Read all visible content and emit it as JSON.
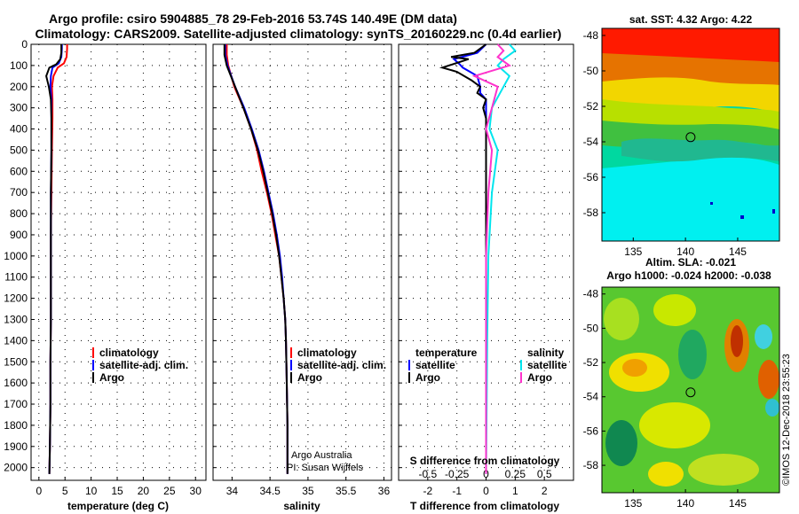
{
  "header": {
    "title_line1": "Argo profile: csiro 5904885_78 29-Feb-2016 53.74S 140.49E (DM data)",
    "title_line2": "Climatology: CARS2009. Satellite-adjusted climatology: synTS_20160229.nc (0.4d earlier)"
  },
  "colors": {
    "climatology": "#ff0000",
    "satellite": "#0000ff",
    "argo": "#000000",
    "sal_satellite": "#00e5ee",
    "sal_argo": "#ff33cc"
  },
  "credits": {
    "line1": "Argo Australia",
    "line2": "PI: Susan Wijffels",
    "imos": "©IMOS 12-Dec-2018 23:55:23"
  },
  "chart_data": [
    {
      "type": "line",
      "id": "temperature",
      "xlabel": "temperature (deg C)",
      "xlim": [
        -1.5,
        32
      ],
      "xticks": [
        0,
        5,
        10,
        15,
        20,
        25,
        30
      ],
      "ylim": [
        2060,
        0
      ],
      "yticks": [
        0,
        100,
        200,
        300,
        400,
        500,
        600,
        700,
        800,
        900,
        1000,
        1100,
        1200,
        1300,
        1400,
        1500,
        1600,
        1700,
        1800,
        1900,
        2000
      ],
      "legend": [
        "climatology",
        "satellite-adj. clim.",
        "Argo"
      ],
      "series": [
        {
          "name": "climatology",
          "points": [
            [
              5.4,
              0
            ],
            [
              5.4,
              20
            ],
            [
              5.3,
              60
            ],
            [
              4.8,
              90
            ],
            [
              3.6,
              110
            ],
            [
              2.8,
              150
            ],
            [
              2.5,
              200
            ],
            [
              2.6,
              260
            ],
            [
              2.6,
              350
            ],
            [
              2.5,
              500
            ],
            [
              2.4,
              700
            ],
            [
              2.3,
              900
            ],
            [
              2.3,
              1100
            ],
            [
              2.3,
              1300
            ],
            [
              2.2,
              1500
            ],
            [
              2.2,
              1700
            ],
            [
              2.1,
              1900
            ],
            [
              2.0,
              2030
            ]
          ]
        },
        {
          "name": "satellite-adj. clim.",
          "points": [
            [
              4.4,
              0
            ],
            [
              4.4,
              20
            ],
            [
              4.3,
              60
            ],
            [
              3.8,
              90
            ],
            [
              2.6,
              110
            ],
            [
              2.3,
              150
            ],
            [
              2.2,
              200
            ],
            [
              2.4,
              260
            ],
            [
              2.4,
              350
            ],
            [
              2.4,
              500
            ],
            [
              2.3,
              700
            ],
            [
              2.3,
              900
            ],
            [
              2.3,
              1100
            ],
            [
              2.3,
              1300
            ],
            [
              2.2,
              1500
            ],
            [
              2.2,
              1700
            ],
            [
              2.1,
              1900
            ],
            [
              2.0,
              2030
            ]
          ]
        },
        {
          "name": "Argo",
          "points": [
            [
              4.3,
              0
            ],
            [
              4.3,
              40
            ],
            [
              4.1,
              70
            ],
            [
              3.3,
              95
            ],
            [
              2.0,
              110
            ],
            [
              1.4,
              150
            ],
            [
              1.9,
              200
            ],
            [
              2.3,
              260
            ],
            [
              2.4,
              350
            ],
            [
              2.4,
              500
            ],
            [
              2.3,
              700
            ],
            [
              2.3,
              900
            ],
            [
              2.3,
              1100
            ],
            [
              2.3,
              1300
            ],
            [
              2.2,
              1500
            ],
            [
              2.2,
              1700
            ],
            [
              2.1,
              1900
            ],
            [
              2.0,
              2030
            ]
          ]
        }
      ]
    },
    {
      "type": "line",
      "id": "salinity",
      "xlabel": "salinity",
      "xlim": [
        33.75,
        36.1
      ],
      "xticks": [
        34,
        34.5,
        35,
        35.5,
        36
      ],
      "ylim": [
        2060,
        0
      ],
      "legend": [
        "climatology",
        "satellite-adj. clim.",
        "Argo"
      ],
      "series": [
        {
          "name": "climatology",
          "points": [
            [
              33.93,
              0
            ],
            [
              33.93,
              50
            ],
            [
              33.95,
              100
            ],
            [
              34.03,
              200
            ],
            [
              34.15,
              300
            ],
            [
              34.25,
              400
            ],
            [
              34.33,
              500
            ],
            [
              34.39,
              600
            ],
            [
              34.46,
              700
            ],
            [
              34.52,
              800
            ],
            [
              34.57,
              900
            ],
            [
              34.62,
              1000
            ],
            [
              34.65,
              1100
            ],
            [
              34.68,
              1200
            ],
            [
              34.7,
              1300
            ],
            [
              34.71,
              1400
            ],
            [
              34.72,
              1600
            ],
            [
              34.73,
              1800
            ],
            [
              34.73,
              2030
            ]
          ]
        },
        {
          "name": "satellite-adj. clim.",
          "points": [
            [
              33.91,
              0
            ],
            [
              33.91,
              50
            ],
            [
              33.94,
              100
            ],
            [
              34.04,
              200
            ],
            [
              34.16,
              300
            ],
            [
              34.26,
              400
            ],
            [
              34.35,
              500
            ],
            [
              34.42,
              600
            ],
            [
              34.48,
              700
            ],
            [
              34.54,
              800
            ],
            [
              34.59,
              900
            ],
            [
              34.63,
              1000
            ],
            [
              34.66,
              1100
            ],
            [
              34.68,
              1200
            ],
            [
              34.7,
              1300
            ],
            [
              34.71,
              1400
            ],
            [
              34.72,
              1600
            ],
            [
              34.73,
              1800
            ],
            [
              34.73,
              2030
            ]
          ]
        },
        {
          "name": "Argo",
          "points": [
            [
              33.9,
              0
            ],
            [
              33.9,
              50
            ],
            [
              33.93,
              100
            ],
            [
              34.04,
              200
            ],
            [
              34.15,
              300
            ],
            [
              34.25,
              400
            ],
            [
              34.34,
              500
            ],
            [
              34.41,
              600
            ],
            [
              34.47,
              700
            ],
            [
              34.53,
              800
            ],
            [
              34.58,
              900
            ],
            [
              34.62,
              1000
            ],
            [
              34.65,
              1100
            ],
            [
              34.68,
              1200
            ],
            [
              34.7,
              1300
            ],
            [
              34.71,
              1400
            ],
            [
              34.72,
              1600
            ],
            [
              34.73,
              1800
            ],
            [
              34.73,
              2030
            ]
          ]
        }
      ]
    },
    {
      "type": "line",
      "id": "differences",
      "xlabel": "T difference from climatology",
      "xlabel2": "S difference from climatology",
      "xlim": [
        -3,
        3
      ],
      "xticks": [
        -2,
        -1,
        0,
        1,
        2
      ],
      "sticks": [
        "-0.5",
        "-0.25",
        "0",
        "0.25",
        "0.5"
      ],
      "ylim": [
        2060,
        0
      ],
      "legend_left_title": "temperature",
      "legend_left": [
        "satellite",
        "Argo"
      ],
      "legend_right_title": "salinity",
      "legend_right": [
        "satellite",
        "Argo"
      ],
      "series": [
        {
          "name": "T satellite",
          "points": [
            [
              0,
              0
            ],
            [
              -0.3,
              40
            ],
            [
              -1.1,
              70
            ],
            [
              -0.9,
              95
            ],
            [
              -0.8,
              110
            ],
            [
              -0.3,
              150
            ],
            [
              -0.2,
              200
            ],
            [
              -0.2,
              230
            ],
            [
              0,
              260
            ],
            [
              0,
              350
            ],
            [
              0,
              500
            ],
            [
              0,
              800
            ],
            [
              0,
              1400
            ],
            [
              0,
              2030
            ]
          ]
        },
        {
          "name": "T Argo",
          "points": [
            [
              0,
              0
            ],
            [
              -0.4,
              40
            ],
            [
              -1.2,
              60
            ],
            [
              -0.6,
              70
            ],
            [
              -1.5,
              110
            ],
            [
              -1.0,
              130
            ],
            [
              -0.5,
              170
            ],
            [
              -0.2,
              200
            ],
            [
              -0.3,
              230
            ],
            [
              0,
              260
            ],
            [
              -0.1,
              300
            ],
            [
              0,
              350
            ],
            [
              0,
              1400
            ],
            [
              0,
              2030
            ]
          ]
        },
        {
          "name": "S satellite",
          "points": [
            [
              0.2,
              0
            ],
            [
              0.25,
              30
            ],
            [
              0.15,
              70
            ],
            [
              0.1,
              100
            ],
            [
              0.2,
              150
            ],
            [
              0.15,
              200
            ],
            [
              0.05,
              300
            ],
            [
              0.03,
              400
            ],
            [
              0.1,
              500
            ],
            [
              0.05,
              700
            ],
            [
              0.02,
              1000
            ],
            [
              0.01,
              1400
            ],
            [
              0,
              2030
            ]
          ]
        },
        {
          "name": "S Argo",
          "points": [
            [
              0.1,
              0
            ],
            [
              0.15,
              30
            ],
            [
              0.1,
              60
            ],
            [
              0.2,
              100
            ],
            [
              -0.1,
              150
            ],
            [
              0.1,
              200
            ],
            [
              0.05,
              300
            ],
            [
              0,
              400
            ],
            [
              0.05,
              500
            ],
            [
              0.02,
              700
            ],
            [
              0,
              1000
            ],
            [
              0,
              1400
            ],
            [
              0,
              2030
            ]
          ]
        }
      ]
    },
    {
      "type": "heatmap",
      "id": "sst_map",
      "title": "sat. SST: 4.32 Argo: 4.22",
      "xticks": [
        135,
        140,
        145
      ],
      "yticks": [
        -48,
        -50,
        -52,
        -54,
        -56,
        -58
      ],
      "xlim": [
        132,
        149
      ],
      "ylim": [
        -59.6,
        -47.6
      ],
      "marker": [
        140.49,
        -53.74
      ]
    },
    {
      "type": "heatmap",
      "id": "sla_map",
      "title1": "Altim. SLA: -0.021",
      "title2": "Argo h1000: -0.024 h2000: -0.038",
      "xticks": [
        135,
        140,
        145
      ],
      "yticks": [
        -48,
        -50,
        -52,
        -54,
        -56,
        -58
      ],
      "xlim": [
        132,
        149
      ],
      "ylim": [
        -59.6,
        -47.6
      ],
      "marker": [
        140.49,
        -53.74
      ]
    }
  ]
}
